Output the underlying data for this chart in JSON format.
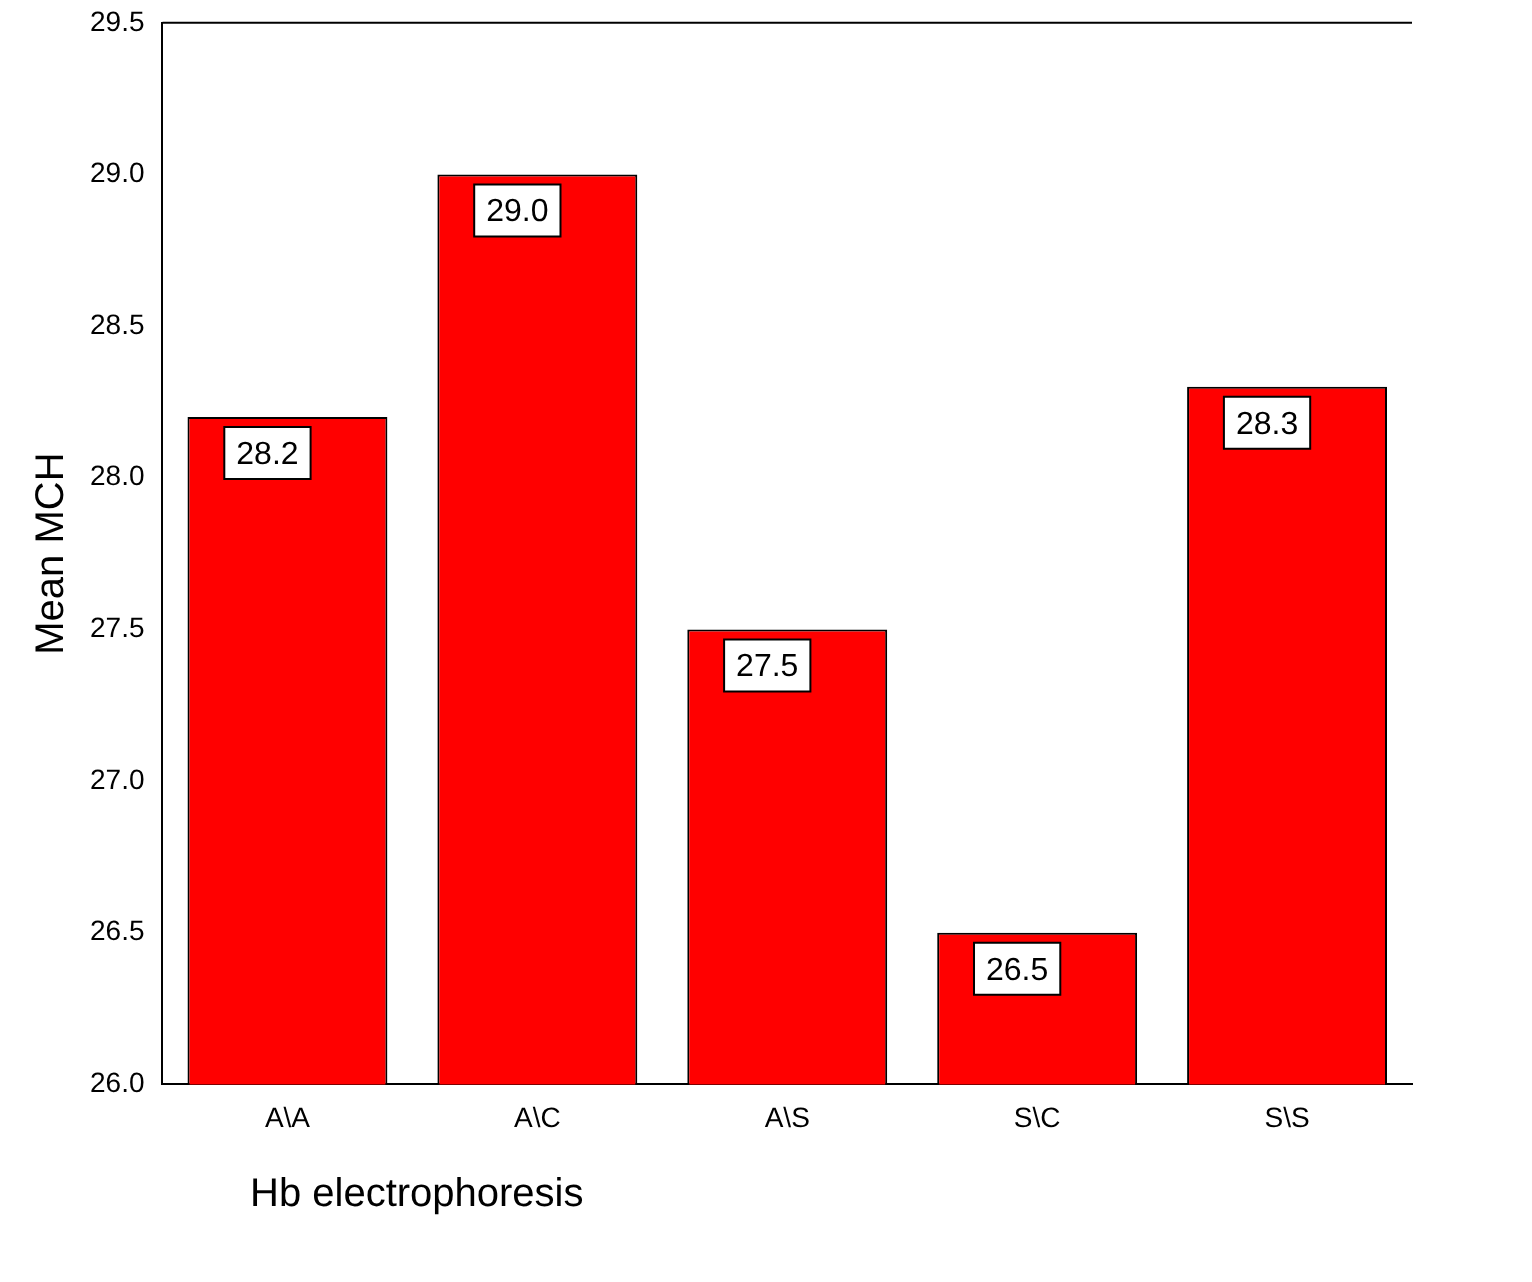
{
  "chart_data": {
    "type": "bar",
    "xlabel": "Hb electrophoresis",
    "ylabel": "Mean MCH",
    "categories": [
      "A\\A",
      "A\\C",
      "A\\S",
      "S\\C",
      "S\\S"
    ],
    "values": [
      28.2,
      29.0,
      27.5,
      26.5,
      28.3
    ],
    "value_labels": [
      "28.2",
      "29.0",
      "27.5",
      "26.5",
      "28.3"
    ],
    "color": "#ff0000",
    "ylim": [
      26,
      29.5
    ],
    "yticks": [
      {
        "value": 26,
        "label": "26.0"
      },
      {
        "value": 26.5,
        "label": "26.5"
      },
      {
        "value": 27,
        "label": "27.0"
      },
      {
        "value": 27.5,
        "label": "27.5"
      },
      {
        "value": 28,
        "label": "28.0"
      },
      {
        "value": 28.5,
        "label": "28.5"
      },
      {
        "value": 29,
        "label": "29.0"
      },
      {
        "value": 29.5,
        "label": "29.5"
      }
    ],
    "grid": false,
    "legend": false
  }
}
